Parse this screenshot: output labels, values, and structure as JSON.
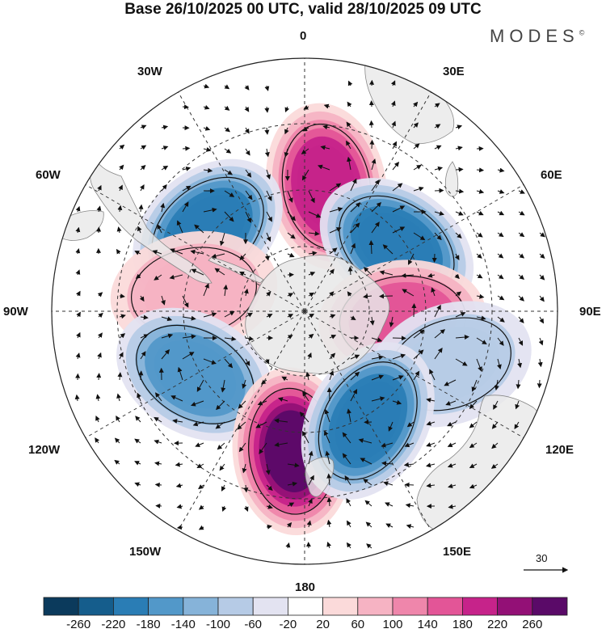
{
  "title": "Base 26/10/2025 00 UTC, valid 28/10/2025 09 UTC",
  "brand": "MODES",
  "brand_mark": "©",
  "longitude_labels": {
    "top": "0",
    "top_left": "30W",
    "top_right": "30E",
    "left_upper": "60W",
    "right_upper": "60E",
    "left": "90W",
    "right": "90E",
    "left_lower": "120W",
    "right_lower": "120E",
    "bottom_left": "150W",
    "bottom_right": "150E",
    "bottom": "180"
  },
  "reference_vector": {
    "label": "30"
  },
  "colorbar": {
    "ticks": [
      "-260",
      "-220",
      "-180",
      "-140",
      "-100",
      "-60",
      "-20",
      "20",
      "60",
      "100",
      "140",
      "180",
      "220",
      "260"
    ],
    "colors": [
      "#0b3a5c",
      "#155d8c",
      "#2a7db5",
      "#5298c9",
      "#86b3d9",
      "#b6cbe6",
      "#e3e3f1",
      "#ffffff",
      "#fbdada",
      "#f6b3c3",
      "#ef86ab",
      "#e35597",
      "#c6238a",
      "#931076",
      "#5a0a68"
    ]
  },
  "anomaly_centres": [
    {
      "name": "positive",
      "lon": 10,
      "lat": -45,
      "value": 200
    },
    {
      "name": "negative",
      "lon": -50,
      "lat": -45,
      "value": -200
    },
    {
      "name": "negative",
      "lon": 55,
      "lat": -50,
      "value": -210
    },
    {
      "name": "positive",
      "lon": 95,
      "lat": -55,
      "value": 160
    },
    {
      "name": "negative",
      "lon": 110,
      "lat": -35,
      "value": -90
    },
    {
      "name": "positive",
      "lon": -80,
      "lat": -50,
      "value": 80
    },
    {
      "name": "negative",
      "lon": -120,
      "lat": -45,
      "value": -180
    },
    {
      "name": "positive",
      "lon": -175,
      "lat": -40,
      "value": 260
    },
    {
      "name": "negative",
      "lon": 150,
      "lat": -45,
      "value": -200
    }
  ]
}
